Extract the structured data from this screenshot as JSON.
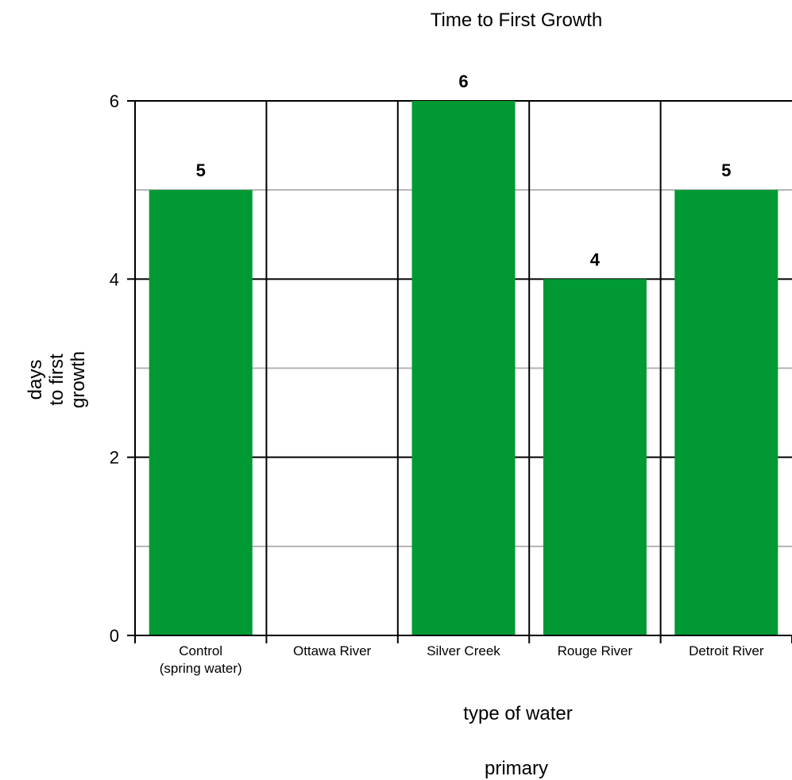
{
  "chart_data": {
    "type": "bar",
    "title": "Time to First Growth",
    "ylabel": [
      "days",
      "to first",
      "growth"
    ],
    "xlabel": "type of water",
    "subtitle": "primary",
    "categories": [
      [
        "Control",
        "(spring water)"
      ],
      [
        "Ottawa River"
      ],
      [
        "Silver Creek"
      ],
      [
        "Rouge River"
      ],
      [
        "Detroit River"
      ]
    ],
    "values": [
      5,
      null,
      6,
      4,
      5
    ],
    "data_labels": [
      "5",
      "",
      "6",
      "4",
      "5"
    ],
    "ylim": [
      0,
      6
    ],
    "yticks": [
      0,
      2,
      4,
      6
    ],
    "minor_gridlines": [
      1,
      3,
      5
    ],
    "grid": true,
    "bar_color": "#009933"
  }
}
